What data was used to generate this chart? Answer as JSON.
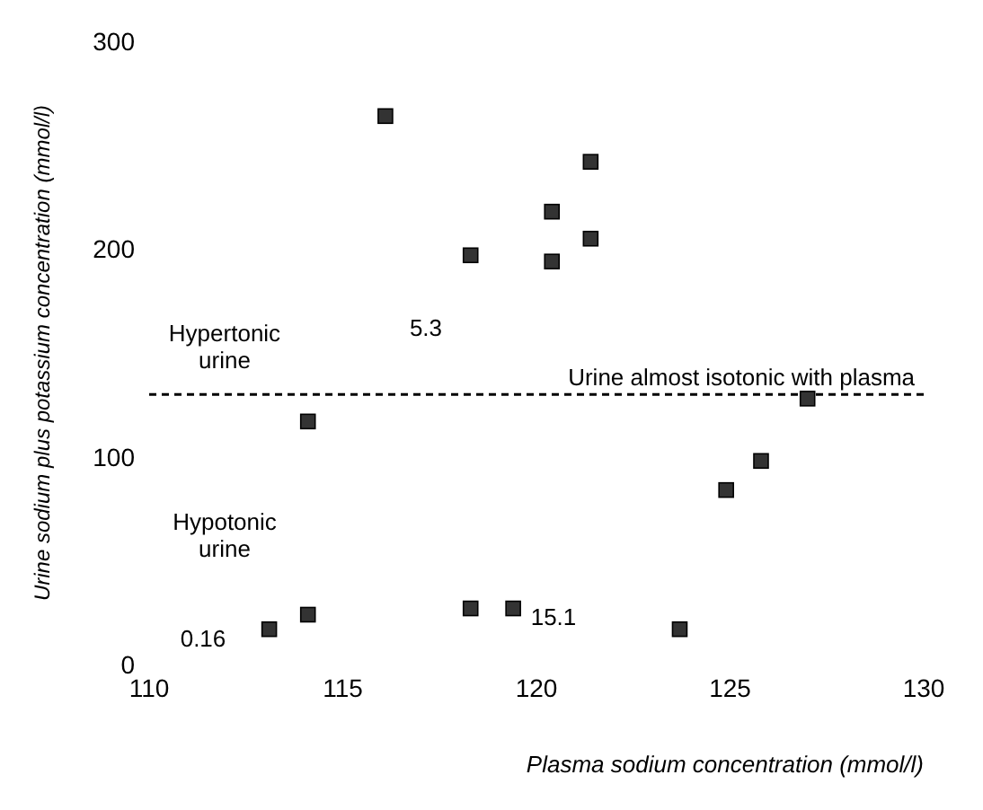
{
  "chart_data": {
    "type": "scatter",
    "xlabel": "Plasma sodium concentration (mmol/l)",
    "ylabel": "Urine sodium plus potassium concentration (mmol/l)",
    "x": [
      116.1,
      118.3,
      121.4,
      120.4,
      120.4,
      121.4,
      114.1,
      114.1,
      113.1,
      118.3,
      119.4,
      123.7,
      127.0,
      125.8,
      124.9
    ],
    "values": [
      264,
      197,
      242,
      218,
      194,
      205,
      117,
      24,
      17,
      27,
      27,
      17,
      128,
      98,
      84
    ],
    "color": "#333333",
    "marker": "square",
    "xlim": [
      110,
      130
    ],
    "xticks": [
      110,
      115,
      120,
      125,
      130
    ],
    "ylim": [
      0,
      300
    ],
    "yticks": [
      0,
      100,
      200,
      300
    ],
    "grid": false,
    "legend": false,
    "ref_lines": [
      {
        "axis": "y",
        "value": 130,
        "label": "Urine almost isotonic with plasma",
        "color": "#000000",
        "line_style": "dashed"
      }
    ],
    "annotations": [
      "5.3",
      "0.16",
      "15.1",
      "Hypertonic urine",
      "Hypotonic urine"
    ]
  }
}
